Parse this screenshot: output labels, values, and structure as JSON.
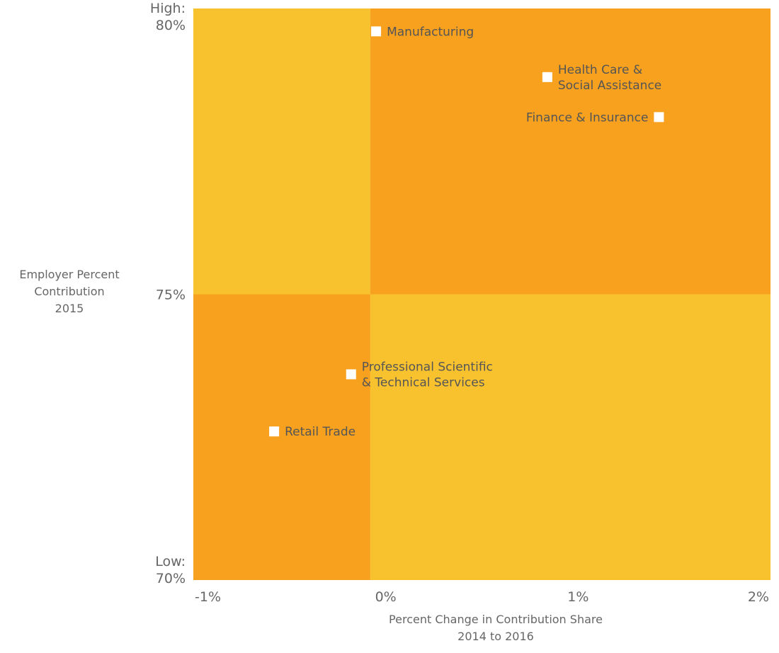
{
  "chart_data": {
    "type": "scatter",
    "title": "",
    "xlabel": [
      "Percent Change in Contribution Share",
      "2014 to 2016"
    ],
    "ylabel": [
      "Employer Percent",
      "Contribution",
      "2015"
    ],
    "xlim": [
      -1,
      2
    ],
    "ylim": [
      70,
      80
    ],
    "x_ticks": [
      {
        "value": -1,
        "label": "-1%"
      },
      {
        "value": 0,
        "label": "0%"
      },
      {
        "value": 1,
        "label": "1%"
      },
      {
        "value": 2,
        "label": "2%"
      }
    ],
    "y_ticks": [
      {
        "value": 80,
        "lines": [
          "High:",
          "80%"
        ]
      },
      {
        "value": 75,
        "lines": [
          "75%"
        ]
      },
      {
        "value": 70,
        "lines": [
          "Low:",
          "70%"
        ]
      }
    ],
    "quadrant_split": {
      "x": -0.08,
      "y": 75
    },
    "quadrant_colors": {
      "top_left": "#F8C22F",
      "top_right": "#F7A11E",
      "bottom_left": "#F7A11E",
      "bottom_right": "#F8C22F"
    },
    "marker_color": "#FFFFFF",
    "points": [
      {
        "name": "Manufacturing",
        "lines": [
          "Manufacturing"
        ],
        "x": -0.05,
        "y": 79.6,
        "label_side": "right"
      },
      {
        "name": "Health Care & Social Assistance",
        "lines": [
          "Health Care &",
          "Social Assistance"
        ],
        "x": 0.84,
        "y": 78.8,
        "label_side": "right"
      },
      {
        "name": "Finance & Insurance",
        "lines": [
          "Finance & Insurance"
        ],
        "x": 1.42,
        "y": 78.1,
        "label_side": "left"
      },
      {
        "name": "Professional Scientific & Technical Services",
        "lines": [
          "Professional Scientific",
          "& Technical Services"
        ],
        "x": -0.18,
        "y": 73.6,
        "label_side": "right"
      },
      {
        "name": "Retail Trade",
        "lines": [
          "Retail Trade"
        ],
        "x": -0.58,
        "y": 72.6,
        "label_side": "right"
      }
    ]
  }
}
